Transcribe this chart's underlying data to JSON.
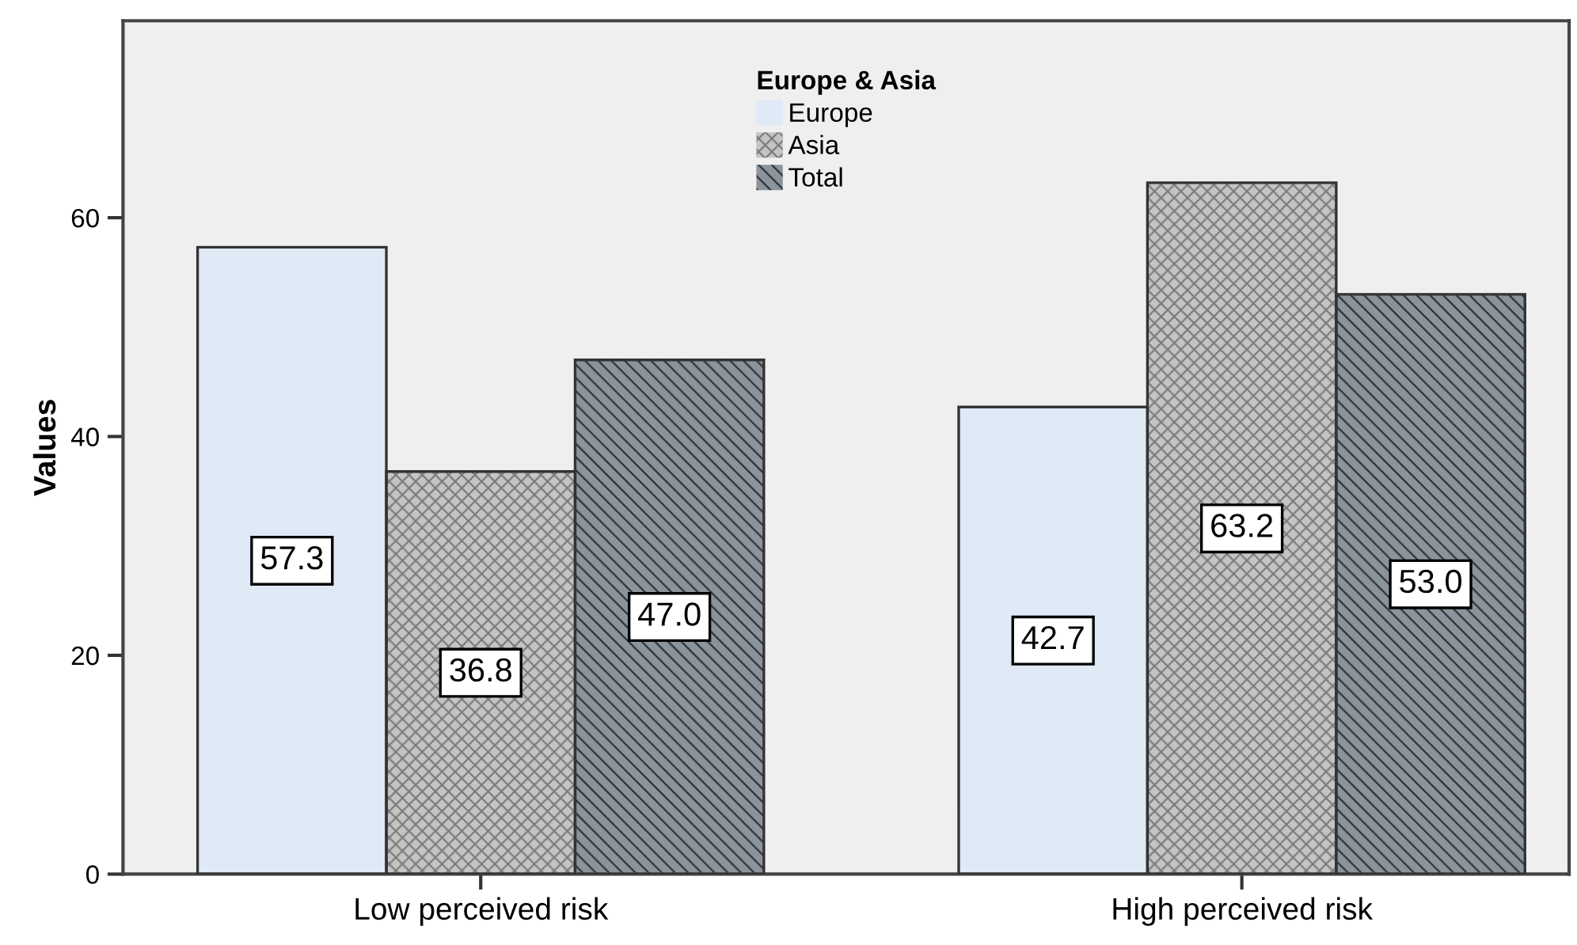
{
  "chart_data": {
    "type": "bar",
    "ylabel": "Values",
    "legend_title": "Europe & Asia",
    "categories": [
      "Low perceived risk",
      "High perceived risk"
    ],
    "series": [
      {
        "name": "Europe",
        "color": "#dfeaf6",
        "values": [
          57.3,
          42.7
        ],
        "value_labels": [
          "57.3",
          "42.7"
        ]
      },
      {
        "name": "Asia",
        "color": "#c4c4c4",
        "values": [
          36.8,
          63.2
        ],
        "value_labels": [
          "36.8",
          "63.2"
        ]
      },
      {
        "name": "Total",
        "color": "#8c949b",
        "values": [
          47.0,
          53.0
        ],
        "value_labels": [
          "47.0",
          "53.0"
        ]
      }
    ],
    "ylim": [
      0,
      78
    ],
    "yticks": [
      0,
      20,
      40,
      60
    ],
    "grid": false,
    "legend": "top"
  }
}
